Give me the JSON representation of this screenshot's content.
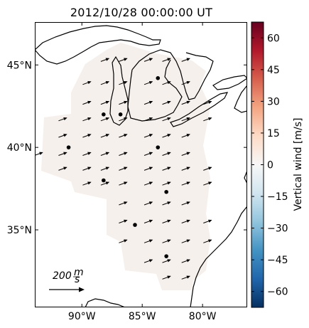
{
  "title": "2012/10/28 00:00:00 UT",
  "map": {
    "lat_ticks": [
      {
        "value": 45,
        "label": "45°N"
      },
      {
        "value": 40,
        "label": "40°N"
      },
      {
        "value": 35,
        "label": "35°N"
      }
    ],
    "lon_ticks": [
      {
        "value": -90,
        "label": "90°W"
      },
      {
        "value": -85,
        "label": "85°W"
      },
      {
        "value": -80,
        "label": "80°W"
      }
    ],
    "lon_range": [
      -93.9,
      -76.3
    ],
    "lat_range": [
      30.3,
      47.6
    ],
    "coverage_color": "#f6f0ec",
    "coastline_color": "#000000"
  },
  "stations": [
    {
      "lon": -88.2,
      "lat": 42.0
    },
    {
      "lon": -86.8,
      "lat": 42.0
    },
    {
      "lon": -83.7,
      "lat": 44.2
    },
    {
      "lon": -91.1,
      "lat": 40.0
    },
    {
      "lon": -83.7,
      "lat": 40.0
    },
    {
      "lon": -88.2,
      "lat": 38.0
    },
    {
      "lon": -83.0,
      "lat": 37.3
    },
    {
      "lon": -85.6,
      "lat": 35.3
    },
    {
      "lon": -83.0,
      "lat": 33.4
    }
  ],
  "wind_vectors": {
    "grid_lons": [
      -93.6,
      -91.6,
      -89.6,
      -88.1,
      -86.6,
      -84.5,
      -83.0,
      -81.4,
      -79.6
    ],
    "grid_lats": [
      45.3,
      43.9,
      42.7,
      41.7,
      40.7,
      39.6,
      38.7,
      37.8,
      36.6,
      35.5,
      34.3,
      33.1,
      32.1
    ],
    "default_direction_deg": 20,
    "reference_value_ms": 200,
    "reference_label": "200",
    "reference_unit_num": "m",
    "reference_unit_den": "s"
  },
  "colorbar": {
    "label": "Vertical wind [m/s]",
    "min": -67.5,
    "max": 67.5,
    "ticks": [
      60,
      45,
      30,
      15,
      0,
      -15,
      -30,
      -45,
      -60
    ],
    "tick_labels": [
      "60",
      "45",
      "30",
      "15",
      "0",
      "−15",
      "−30",
      "−45",
      "−60"
    ],
    "colormap": "RdBu_r",
    "colors": [
      "#053061",
      "#2166ac",
      "#4393c3",
      "#92c5de",
      "#d1e5f0",
      "#f7f7f7",
      "#fddbc7",
      "#f4a582",
      "#d6604d",
      "#b2182b",
      "#67001f"
    ]
  }
}
